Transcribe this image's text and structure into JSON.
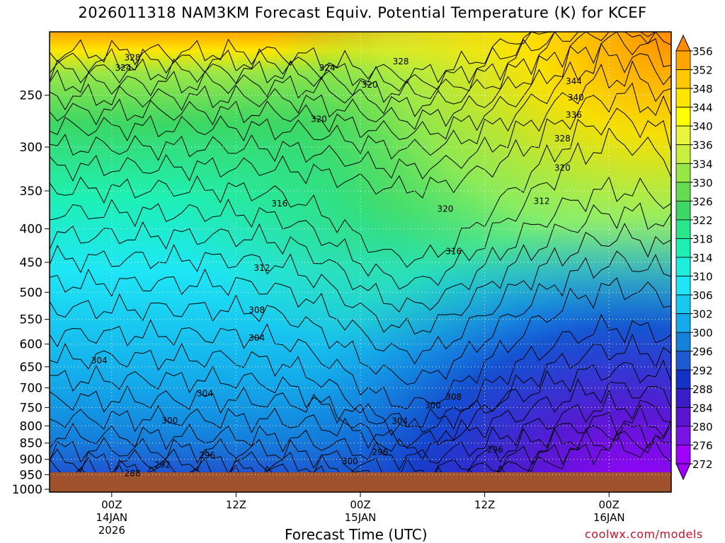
{
  "chart_data": {
    "type": "heatmap",
    "title": "2026011318 NAM3KM Forecast Equiv. Potential Temperature (K) for KCEF",
    "xlabel": "Forecast Time (UTC)",
    "ylabel": "",
    "y_ticks": [
      250,
      300,
      350,
      400,
      450,
      500,
      550,
      600,
      650,
      700,
      750,
      800,
      850,
      900,
      950,
      1000
    ],
    "ylim": [
      200,
      1010
    ],
    "y_scale": "log",
    "x_ticks": [
      {
        "hours": 6,
        "line1": "00Z",
        "line2": "14JAN",
        "line3": "2026"
      },
      {
        "hours": 18,
        "line1": "12Z",
        "line2": "",
        "line3": ""
      },
      {
        "hours": 30,
        "line1": "00Z",
        "line2": "15JAN",
        "line3": ""
      },
      {
        "hours": 42,
        "line1": "12Z",
        "line2": "",
        "line3": ""
      },
      {
        "hours": 54,
        "line1": "00Z",
        "line2": "16JAN",
        "line3": ""
      }
    ],
    "xlim": [
      0,
      60
    ],
    "colorbar_levels": [
      356,
      352,
      348,
      344,
      340,
      336,
      334,
      330,
      326,
      322,
      318,
      314,
      310,
      306,
      302,
      300,
      296,
      292,
      288,
      284,
      280,
      276,
      272
    ],
    "colorbar_colors": [
      "#ff8c00",
      "#ffa500",
      "#ffc800",
      "#ffe600",
      "#ffff00",
      "#e8f53c",
      "#c8f03c",
      "#96e646",
      "#64dc50",
      "#3cd764",
      "#28e68c",
      "#1ef0b4",
      "#1eeedc",
      "#1ee6f5",
      "#19c8f0",
      "#14aaeb",
      "#1482dc",
      "#1e5ad2",
      "#1432c8",
      "#3c1ec8",
      "#5a14d2",
      "#7814e6",
      "#a000ff"
    ],
    "contour_labels": [
      {
        "text": "328",
        "hours": 8.0,
        "p": 219
      },
      {
        "text": "324",
        "hours": 7.1,
        "p": 227
      },
      {
        "text": "324",
        "hours": 26.8,
        "p": 227
      },
      {
        "text": "328",
        "hours": 33.9,
        "p": 222
      },
      {
        "text": "320",
        "hours": 30.9,
        "p": 241
      },
      {
        "text": "344",
        "hours": 50.6,
        "p": 238
      },
      {
        "text": "340",
        "hours": 50.8,
        "p": 252
      },
      {
        "text": "336",
        "hours": 50.6,
        "p": 268
      },
      {
        "text": "320",
        "hours": 26.0,
        "p": 272
      },
      {
        "text": "328",
        "hours": 49.5,
        "p": 291
      },
      {
        "text": "320",
        "hours": 49.5,
        "p": 323
      },
      {
        "text": "312",
        "hours": 47.5,
        "p": 363
      },
      {
        "text": "316",
        "hours": 22.2,
        "p": 366
      },
      {
        "text": "320",
        "hours": 38.2,
        "p": 373
      },
      {
        "text": "316",
        "hours": 39.0,
        "p": 433
      },
      {
        "text": "312",
        "hours": 20.5,
        "p": 459
      },
      {
        "text": "308",
        "hours": 20.0,
        "p": 532
      },
      {
        "text": "304",
        "hours": 20.0,
        "p": 587
      },
      {
        "text": "304",
        "hours": 4.8,
        "p": 636
      },
      {
        "text": "304",
        "hours": 15.0,
        "p": 714
      },
      {
        "text": "308",
        "hours": 39.0,
        "p": 723
      },
      {
        "text": "300",
        "hours": 37.0,
        "p": 745
      },
      {
        "text": "304",
        "hours": 33.8,
        "p": 787
      },
      {
        "text": "300",
        "hours": 11.6,
        "p": 786
      },
      {
        "text": "296",
        "hours": 15.2,
        "p": 887
      },
      {
        "text": "296",
        "hours": 31.9,
        "p": 878
      },
      {
        "text": "296",
        "hours": 43.0,
        "p": 870
      },
      {
        "text": "300",
        "hours": 29.0,
        "p": 906
      },
      {
        "text": "292",
        "hours": 10.9,
        "p": 918
      },
      {
        "text": "288",
        "hours": 8.0,
        "p": 946
      }
    ]
  },
  "credit": "coolwx.com/models"
}
